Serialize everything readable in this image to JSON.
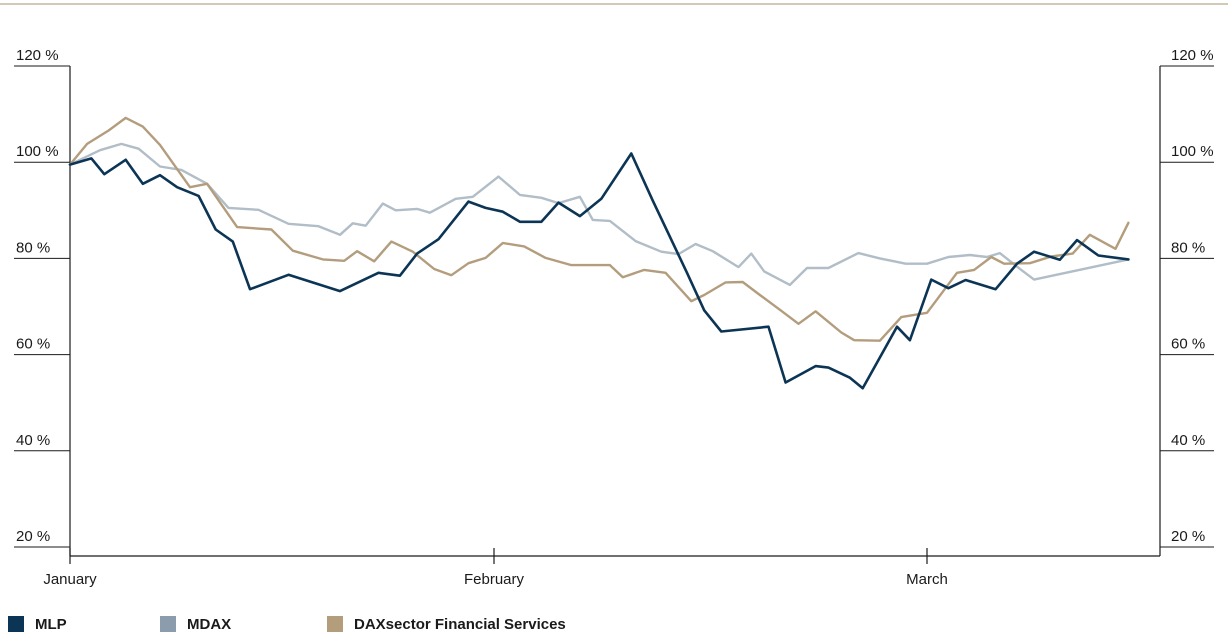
{
  "chart_data": {
    "type": "line",
    "title": "",
    "xlabel": "",
    "ylabel": "",
    "x_ticks": [
      "January",
      "February",
      "March"
    ],
    "y_ticks": [
      "20 %",
      "40 %",
      "60 %",
      "80 %",
      "100 %",
      "120 %"
    ],
    "y_tick_values": [
      20,
      40,
      60,
      80,
      100,
      120
    ],
    "ylim": [
      18,
      120
    ],
    "grid": false,
    "legend_position": "bottom-left",
    "colors": {
      "rule": "#b9a98a",
      "axis": "#1a1a1a"
    },
    "series": [
      {
        "name": "MLP",
        "color": "#0c3555",
        "values": [
          [
            0,
            99.5
          ],
          [
            0.5,
            100.8
          ],
          [
            0.8,
            97.5
          ],
          [
            1.3,
            100.5
          ],
          [
            1.7,
            95.5
          ],
          [
            2.1,
            97.3
          ],
          [
            2.5,
            94.8
          ],
          [
            3,
            93
          ],
          [
            3.4,
            86
          ],
          [
            3.8,
            83.5
          ],
          [
            4.2,
            73.6
          ],
          [
            5.1,
            76.6
          ],
          [
            6.3,
            73.2
          ],
          [
            7.2,
            77
          ],
          [
            7.7,
            76.4
          ],
          [
            8.1,
            81
          ],
          [
            8.6,
            84
          ],
          [
            9.3,
            91.8
          ],
          [
            9.7,
            90.5
          ],
          [
            10.1,
            89.7
          ],
          [
            10.5,
            87.6
          ],
          [
            11,
            87.6
          ],
          [
            11.4,
            91.6
          ],
          [
            11.9,
            88.8
          ],
          [
            12.4,
            92.4
          ],
          [
            13.1,
            101.8
          ],
          [
            13.6,
            92
          ],
          [
            14.4,
            77
          ],
          [
            14.8,
            69.2
          ],
          [
            15.2,
            64.8
          ],
          [
            16.3,
            65.8
          ],
          [
            16.7,
            54.2
          ],
          [
            17.4,
            57.6
          ],
          [
            17.7,
            57.3
          ],
          [
            18.2,
            55.2
          ],
          [
            18.5,
            53
          ],
          [
            19.3,
            65.8
          ],
          [
            19.6,
            63
          ],
          [
            20.1,
            75.6
          ],
          [
            20.5,
            73.8
          ],
          [
            20.9,
            75.5
          ],
          [
            21.6,
            73.6
          ],
          [
            22.1,
            78.9
          ],
          [
            22.5,
            81.4
          ],
          [
            23.1,
            79.7
          ],
          [
            23.5,
            83.8
          ],
          [
            24,
            80.6
          ],
          [
            24.7,
            79.8
          ]
        ]
      },
      {
        "name": "MDAX",
        "color": "#b1bdc7",
        "values": [
          [
            0,
            99.5
          ],
          [
            0.7,
            102.5
          ],
          [
            1.2,
            103.8
          ],
          [
            1.6,
            102.8
          ],
          [
            2.1,
            99.1
          ],
          [
            2.6,
            98.4
          ],
          [
            3.2,
            95.5
          ],
          [
            3.7,
            90.5
          ],
          [
            4.4,
            90.1
          ],
          [
            5.1,
            87.2
          ],
          [
            5.8,
            86.7
          ],
          [
            6.3,
            84.9
          ],
          [
            6.6,
            87.3
          ],
          [
            6.9,
            86.8
          ],
          [
            7.3,
            91.4
          ],
          [
            7.6,
            90
          ],
          [
            8.1,
            90.3
          ],
          [
            8.4,
            89.5
          ],
          [
            9,
            92.4
          ],
          [
            9.4,
            92.8
          ],
          [
            10,
            97
          ],
          [
            10.5,
            93.2
          ],
          [
            11,
            92.6
          ],
          [
            11.4,
            91.5
          ],
          [
            11.9,
            92.8
          ],
          [
            12.2,
            88
          ],
          [
            12.6,
            87.8
          ],
          [
            13.2,
            83.6
          ],
          [
            13.8,
            81.4
          ],
          [
            14.2,
            80.9
          ],
          [
            14.6,
            83
          ],
          [
            15,
            81.5
          ],
          [
            15.6,
            78.2
          ],
          [
            15.9,
            81
          ],
          [
            16.2,
            77.3
          ],
          [
            16.8,
            74.5
          ],
          [
            17.2,
            78
          ],
          [
            17.7,
            78
          ],
          [
            18.4,
            81.1
          ],
          [
            18.9,
            80
          ],
          [
            19.5,
            78.9
          ],
          [
            20,
            78.9
          ],
          [
            20.5,
            80.3
          ],
          [
            21,
            80.7
          ],
          [
            21.4,
            80.3
          ],
          [
            21.7,
            81.1
          ],
          [
            22.2,
            77.6
          ],
          [
            22.5,
            75.6
          ],
          [
            24.7,
            79.8
          ]
        ]
      },
      {
        "name": "DAXsector Financial Services",
        "color": "#b39d7d",
        "values": [
          [
            0,
            99.5
          ],
          [
            0.4,
            103.8
          ],
          [
            0.9,
            106.6
          ],
          [
            1.3,
            109.2
          ],
          [
            1.7,
            107.4
          ],
          [
            2.1,
            103.6
          ],
          [
            2.8,
            94.8
          ],
          [
            3.2,
            95.5
          ],
          [
            3.9,
            86.5
          ],
          [
            4.7,
            86
          ],
          [
            5.2,
            81.6
          ],
          [
            5.9,
            79.8
          ],
          [
            6.4,
            79.5
          ],
          [
            6.7,
            81.5
          ],
          [
            7.1,
            79.4
          ],
          [
            7.5,
            83.5
          ],
          [
            8,
            81.4
          ],
          [
            8.5,
            77.8
          ],
          [
            8.9,
            76.5
          ],
          [
            9.3,
            79
          ],
          [
            9.7,
            80.1
          ],
          [
            10.1,
            83.2
          ],
          [
            10.6,
            82.5
          ],
          [
            11.1,
            80.1
          ],
          [
            11.7,
            78.6
          ],
          [
            12.6,
            78.6
          ],
          [
            12.9,
            76.1
          ],
          [
            13.4,
            77.6
          ],
          [
            13.9,
            77
          ],
          [
            14.5,
            71.1
          ],
          [
            14.8,
            72.4
          ],
          [
            15.3,
            75
          ],
          [
            15.7,
            75.1
          ],
          [
            16.1,
            72.4
          ],
          [
            16.6,
            69.1
          ],
          [
            17,
            66.4
          ],
          [
            17.4,
            69
          ],
          [
            18,
            64.6
          ],
          [
            18.3,
            63
          ],
          [
            18.9,
            62.9
          ],
          [
            19.4,
            67.8
          ],
          [
            20,
            68.7
          ],
          [
            20.7,
            77
          ],
          [
            21.1,
            77.6
          ],
          [
            21.5,
            80.3
          ],
          [
            21.8,
            78.9
          ],
          [
            22.4,
            79
          ],
          [
            22.9,
            80.4
          ],
          [
            23.4,
            81
          ],
          [
            23.8,
            84.9
          ],
          [
            24.4,
            82
          ],
          [
            24.7,
            87.4
          ]
        ]
      }
    ]
  }
}
